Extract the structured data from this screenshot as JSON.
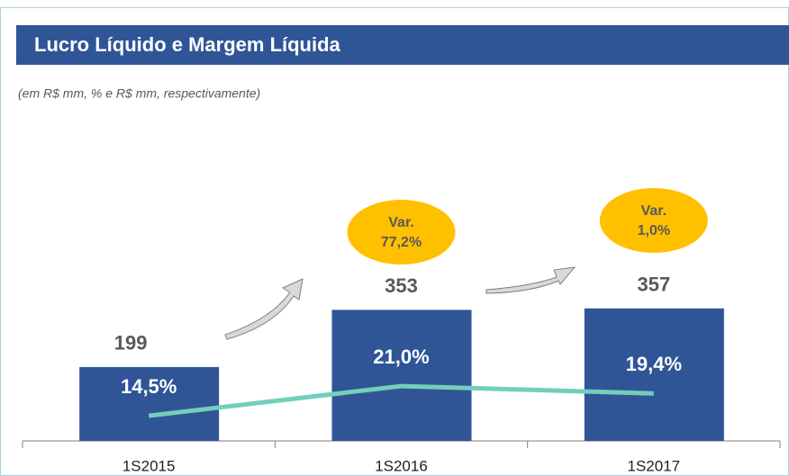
{
  "chart_data": {
    "type": "bar",
    "title": "Lucro Líquido e Margem Líquida",
    "subtitle": "(em R$ mm, % e R$ mm, respectivamente)",
    "categories": [
      "1S2015",
      "1S2016",
      "1S2017"
    ],
    "series": [
      {
        "name": "Lucro Líquido",
        "type": "bar",
        "color": "#2f5597",
        "values": [
          199,
          353,
          357
        ]
      },
      {
        "name": "Margem Líquida",
        "type": "line",
        "axis": "y2",
        "color": "#72cfba",
        "values": [
          14.5,
          21.0,
          19.4
        ],
        "value_labels": [
          "14,5%",
          "21,0%",
          "19,4%"
        ]
      }
    ],
    "annotations": [
      {
        "lines": [
          "Var.",
          "77,2%"
        ]
      },
      {
        "lines": [
          "Var.",
          "1,0%"
        ]
      }
    ],
    "ylim": [
      0,
      800
    ],
    "y2lim": [
      9,
      74
    ],
    "annotation_color": "#ffc000"
  }
}
